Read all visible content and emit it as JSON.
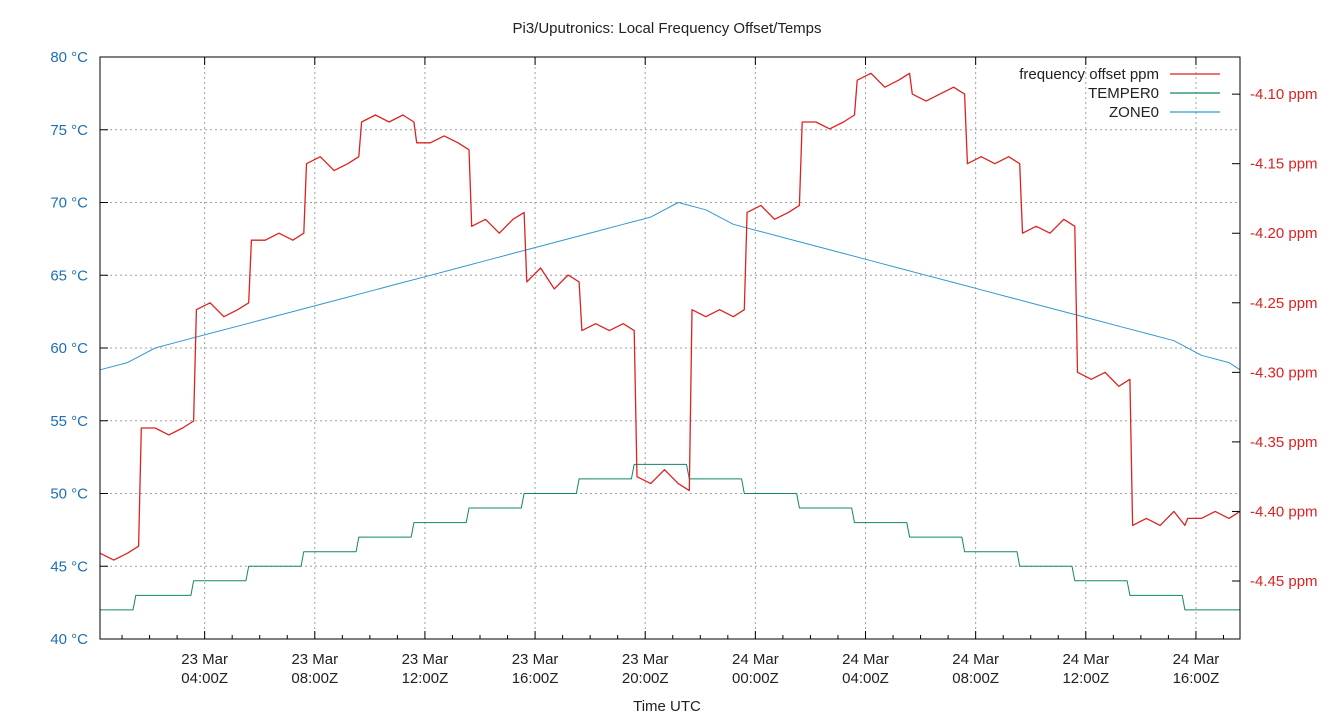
{
  "chart_data": {
    "type": "line",
    "title": "Pi3/Uputronics: Local Frequency Offset/Temps",
    "xlabel": "Time UTC",
    "ylabel_left": "°C",
    "ylabel_right": "ppm",
    "x_unit": "hours since 23 Mar 00:00Z",
    "xlim": [
      0.2,
      41.6
    ],
    "ylim_left": [
      40,
      80
    ],
    "ylim_right": [
      -4.4917,
      -4.0733
    ],
    "left_ticks": [
      {
        "value": 40,
        "label": "40 °C"
      },
      {
        "value": 45,
        "label": "45 °C"
      },
      {
        "value": 50,
        "label": "50 °C"
      },
      {
        "value": 55,
        "label": "55 °C"
      },
      {
        "value": 60,
        "label": "60 °C"
      },
      {
        "value": 65,
        "label": "65 °C"
      },
      {
        "value": 70,
        "label": "70 °C"
      },
      {
        "value": 75,
        "label": "75 °C"
      },
      {
        "value": 80,
        "label": "80 °C"
      }
    ],
    "right_ticks": [
      {
        "value": -4.1,
        "label": "-4.10 ppm"
      },
      {
        "value": -4.15,
        "label": "-4.15 ppm"
      },
      {
        "value": -4.2,
        "label": "-4.20 ppm"
      },
      {
        "value": -4.25,
        "label": "-4.25 ppm"
      },
      {
        "value": -4.3,
        "label": "-4.30 ppm"
      },
      {
        "value": -4.35,
        "label": "-4.35 ppm"
      },
      {
        "value": -4.4,
        "label": "-4.40 ppm"
      },
      {
        "value": -4.45,
        "label": "-4.45 ppm"
      }
    ],
    "x_ticks": [
      {
        "value": 4,
        "line1": "23 Mar",
        "line2": "04:00Z"
      },
      {
        "value": 8,
        "line1": "23 Mar",
        "line2": "08:00Z"
      },
      {
        "value": 12,
        "line1": "23 Mar",
        "line2": "12:00Z"
      },
      {
        "value": 16,
        "line1": "23 Mar",
        "line2": "16:00Z"
      },
      {
        "value": 20,
        "line1": "23 Mar",
        "line2": "20:00Z"
      },
      {
        "value": 24,
        "line1": "24 Mar",
        "line2": "00:00Z"
      },
      {
        "value": 28,
        "line1": "24 Mar",
        "line2": "04:00Z"
      },
      {
        "value": 32,
        "line1": "24 Mar",
        "line2": "08:00Z"
      },
      {
        "value": 36,
        "line1": "24 Mar",
        "line2": "12:00Z"
      },
      {
        "value": 40,
        "line1": "24 Mar",
        "line2": "16:00Z"
      }
    ],
    "legend_position": "top-right",
    "series": [
      {
        "name": "frequency offset ppm",
        "axis": "right",
        "color": "#dd2222",
        "x": [
          0.2,
          0.7,
          1.2,
          1.6,
          1.7,
          2.2,
          2.7,
          3.2,
          3.6,
          3.7,
          4.2,
          4.7,
          5.2,
          5.6,
          5.7,
          6.2,
          6.7,
          7.2,
          7.6,
          7.7,
          8.2,
          8.7,
          9.2,
          9.6,
          9.7,
          10.2,
          10.7,
          11.2,
          11.6,
          11.7,
          12.2,
          12.7,
          13.2,
          13.6,
          13.7,
          14.2,
          14.7,
          15.2,
          15.6,
          15.7,
          16.2,
          16.7,
          17.2,
          17.6,
          17.7,
          18.2,
          18.7,
          19.2,
          19.6,
          19.7,
          20.2,
          20.7,
          21.2,
          21.6,
          21.7,
          22.2,
          22.7,
          23.2,
          23.6,
          23.7,
          24.2,
          24.7,
          25.2,
          25.6,
          25.7,
          26.2,
          26.7,
          27.2,
          27.6,
          27.7,
          28.2,
          28.7,
          29.2,
          29.6,
          29.7,
          30.2,
          30.7,
          31.2,
          31.6,
          31.7,
          32.2,
          32.7,
          33.2,
          33.6,
          33.7,
          34.2,
          34.7,
          35.2,
          35.6,
          35.7,
          36.2,
          36.7,
          37.2,
          37.6,
          37.7,
          38.2,
          38.7,
          39.2,
          39.6,
          39.7,
          40.2,
          40.7,
          41.2,
          41.6
        ],
        "values": [
          -4.43,
          -4.435,
          -4.43,
          -4.425,
          -4.34,
          -4.34,
          -4.345,
          -4.34,
          -4.335,
          -4.255,
          -4.25,
          -4.26,
          -4.255,
          -4.25,
          -4.205,
          -4.205,
          -4.2,
          -4.205,
          -4.2,
          -4.15,
          -4.145,
          -4.155,
          -4.15,
          -4.145,
          -4.12,
          -4.115,
          -4.12,
          -4.115,
          -4.12,
          -4.135,
          -4.135,
          -4.13,
          -4.135,
          -4.14,
          -4.195,
          -4.19,
          -4.2,
          -4.19,
          -4.185,
          -4.235,
          -4.225,
          -4.24,
          -4.23,
          -4.235,
          -4.27,
          -4.265,
          -4.27,
          -4.265,
          -4.27,
          -4.375,
          -4.38,
          -4.37,
          -4.38,
          -4.385,
          -4.255,
          -4.26,
          -4.255,
          -4.26,
          -4.255,
          -4.185,
          -4.18,
          -4.19,
          -4.185,
          -4.18,
          -4.12,
          -4.12,
          -4.125,
          -4.12,
          -4.115,
          -4.09,
          -4.085,
          -4.095,
          -4.09,
          -4.085,
          -4.1,
          -4.105,
          -4.1,
          -4.095,
          -4.1,
          -4.15,
          -4.145,
          -4.15,
          -4.145,
          -4.15,
          -4.2,
          -4.195,
          -4.2,
          -4.19,
          -4.195,
          -4.3,
          -4.305,
          -4.3,
          -4.31,
          -4.305,
          -4.41,
          -4.405,
          -4.41,
          -4.4,
          -4.41,
          -4.405,
          -4.405,
          -4.4,
          -4.405,
          -4.4
        ]
      },
      {
        "name": "TEMPER0",
        "axis": "left",
        "color": "#118866",
        "x": [
          0.2,
          1.4,
          1.5,
          3.5,
          3.6,
          5.5,
          5.6,
          7.5,
          7.6,
          9.5,
          9.6,
          11.5,
          11.6,
          13.5,
          13.6,
          15.5,
          15.6,
          17.5,
          17.6,
          19.5,
          19.6,
          21.5,
          21.6,
          23.5,
          23.6,
          25.5,
          25.6,
          27.5,
          27.6,
          29.5,
          29.6,
          31.5,
          31.6,
          33.5,
          33.6,
          35.5,
          35.6,
          37.5,
          37.6,
          39.5,
          39.6,
          41.6
        ],
        "values": [
          42,
          42,
          43,
          43,
          44,
          44,
          45,
          45,
          46,
          46,
          47,
          47,
          48,
          48,
          49,
          49,
          50,
          50,
          51,
          51,
          52,
          52,
          51,
          51,
          50,
          50,
          49,
          49,
          48,
          48,
          47,
          47,
          46,
          46,
          45,
          45,
          44,
          44,
          43,
          43,
          42,
          42
        ]
      },
      {
        "name": "ZONE0",
        "axis": "left",
        "color": "#3399cc",
        "x": [
          0.2,
          1.2,
          2.2,
          3.2,
          4.2,
          5.2,
          6.2,
          7.2,
          8.2,
          9.2,
          10.2,
          11.2,
          12.2,
          13.2,
          14.2,
          15.2,
          16.2,
          17.2,
          18.2,
          19.2,
          20.2,
          21.2,
          22.2,
          23.2,
          24.2,
          25.2,
          26.2,
          27.2,
          28.2,
          29.2,
          30.2,
          31.2,
          32.2,
          33.2,
          34.2,
          35.2,
          36.2,
          37.2,
          38.2,
          39.2,
          40.2,
          41.2,
          41.6
        ],
        "values": [
          58.5,
          59,
          60,
          60.5,
          61,
          61.5,
          62,
          62.5,
          63,
          63.5,
          64,
          64.5,
          65,
          65.5,
          66,
          66.5,
          67,
          67.5,
          68,
          68.5,
          69,
          70,
          69.5,
          68.5,
          68,
          67.5,
          67,
          66.5,
          66,
          65.5,
          65,
          64.5,
          64,
          63.5,
          63,
          62.5,
          62,
          61.5,
          61,
          60.5,
          59.5,
          59,
          58.5
        ]
      }
    ]
  }
}
